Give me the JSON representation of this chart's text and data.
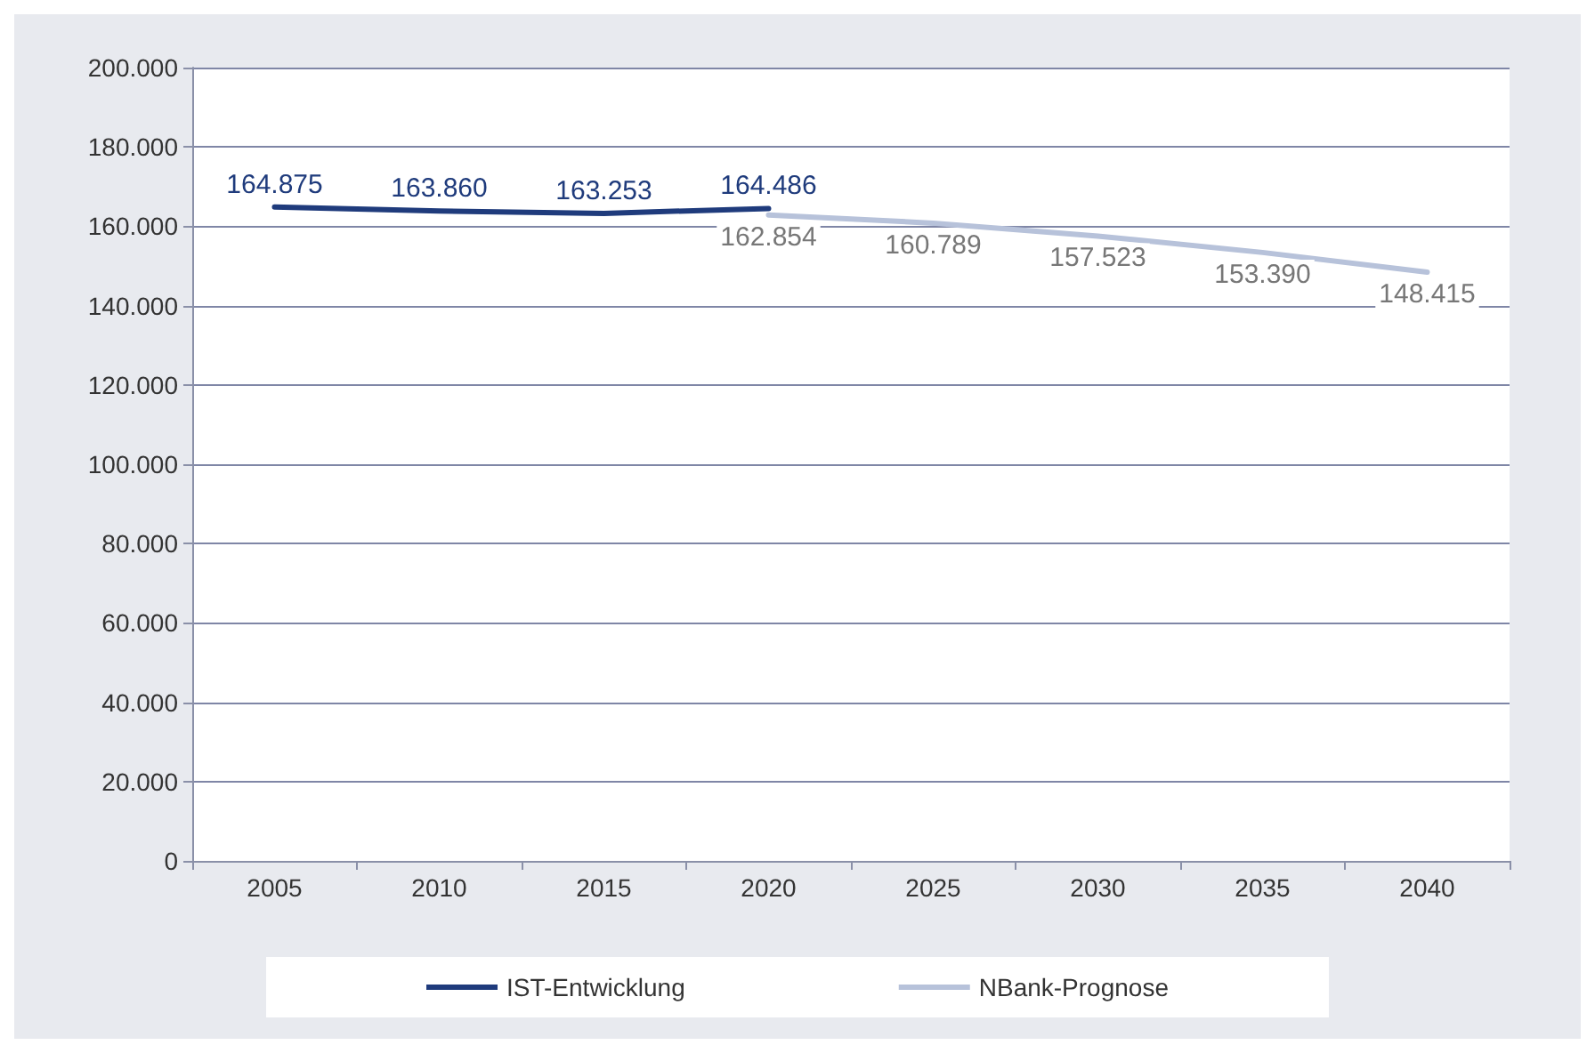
{
  "chart_data": {
    "type": "line",
    "categories": [
      "2005",
      "2010",
      "2015",
      "2020",
      "2025",
      "2030",
      "2035",
      "2040"
    ],
    "series": [
      {
        "name": "IST-Entwicklung",
        "color": "#1f3b7c",
        "values": [
          164875,
          163860,
          163253,
          164486,
          null,
          null,
          null,
          null
        ],
        "value_labels": [
          "164.875",
          "163.860",
          "163.253",
          "164.486",
          null,
          null,
          null,
          null
        ]
      },
      {
        "name": "NBank-Prognose",
        "color": "#b7c2da",
        "values": [
          null,
          null,
          null,
          162854,
          160789,
          157523,
          153390,
          148415
        ],
        "value_labels": [
          null,
          null,
          null,
          "162.854",
          "160.789",
          "157.523",
          "153.390",
          "148.415"
        ]
      }
    ],
    "ylim": [
      0,
      200000
    ],
    "yticks": [
      0,
      {
        "value": 20000,
        "label": "20.000"
      },
      {
        "value": 40000,
        "label": "40.000"
      },
      {
        "value": 60000,
        "label": "60.000"
      },
      {
        "value": 80000,
        "label": "80.000"
      },
      {
        "value": 100000,
        "label": "100.000"
      },
      {
        "value": 120000,
        "label": "120.000"
      },
      {
        "value": 140000,
        "label": "140.000"
      },
      {
        "value": 160000,
        "label": "160.000"
      },
      {
        "value": 180000,
        "label": "180.000"
      },
      {
        "value": 200000,
        "label": "200.000"
      }
    ],
    "grid": "y",
    "legend": "bottom",
    "marker": "none",
    "line_style": "solid"
  }
}
